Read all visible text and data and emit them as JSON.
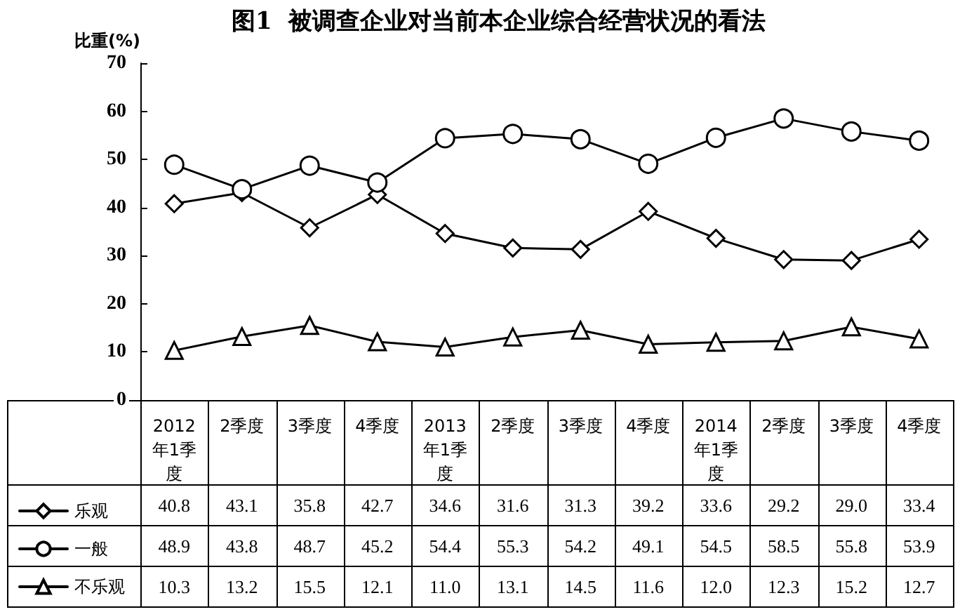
{
  "chart_data": {
    "type": "line",
    "title": "图1  被调查企业对当前本企业综合经营状况的看法",
    "ylabel": "比重(%)",
    "categories": [
      "2012年1季度",
      "2季度",
      "3季度",
      "4季度",
      "2013年1季度",
      "2季度",
      "3季度",
      "4季度",
      "2014年1季度",
      "2季度",
      "3季度",
      "4季度"
    ],
    "series": [
      {
        "name": "乐观",
        "color": "#000000",
        "marker": "diamond",
        "values": [
          40.8,
          43.1,
          35.8,
          42.7,
          34.6,
          31.6,
          31.3,
          39.2,
          33.6,
          29.2,
          29.0,
          33.4
        ],
        "value_labels": [
          "40.8",
          "43.1",
          "35.8",
          "42.7",
          "34.6",
          "31.6",
          "31.3",
          "39.2",
          "33.6",
          "29.2",
          "29.0",
          "33.4"
        ]
      },
      {
        "name": "一般",
        "color": "#000000",
        "marker": "circle",
        "values": [
          48.9,
          43.8,
          48.7,
          45.2,
          54.4,
          55.3,
          54.2,
          49.1,
          54.5,
          58.5,
          55.8,
          53.9
        ],
        "value_labels": [
          "48.9",
          "43.8",
          "48.7",
          "45.2",
          "54.4",
          "55.3",
          "54.2",
          "49.1",
          "54.5",
          "58.5",
          "55.8",
          "53.9"
        ]
      },
      {
        "name": "不乐观",
        "color": "#000000",
        "marker": "triangle",
        "values": [
          10.3,
          13.2,
          15.5,
          12.1,
          11.0,
          13.1,
          14.5,
          11.6,
          12.0,
          12.3,
          15.2,
          12.7
        ],
        "value_labels": [
          "10.3",
          "13.2",
          "15.5",
          "12.1",
          "11.0",
          "13.1",
          "14.5",
          "11.6",
          "12.0",
          "12.3",
          "15.2",
          "12.7"
        ]
      }
    ],
    "ylim": [
      0,
      70
    ],
    "yticks": [
      0,
      10,
      20,
      30,
      40,
      50,
      60,
      70
    ],
    "grid": false,
    "legend": "bottom left",
    "line_style": "solid"
  }
}
